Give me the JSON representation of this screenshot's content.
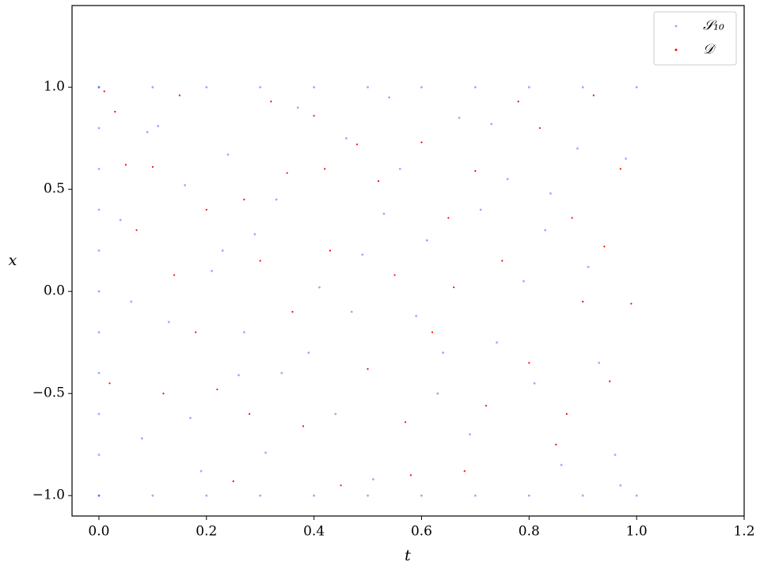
{
  "chart_data": {
    "type": "scatter",
    "xlabel": "t",
    "ylabel": "x",
    "xlim": [
      -0.05,
      1.2
    ],
    "ylim": [
      -1.1,
      1.4
    ],
    "xticks": [
      {
        "value": 0,
        "label": "0.0"
      },
      0.2,
      0.4,
      0.6,
      0.8,
      {
        "value": 1,
        "label": "1.0"
      },
      1.2
    ],
    "yticks": [
      {
        "value": -1,
        "label": "−1.0"
      },
      {
        "value": -0.5,
        "label": "−0.5"
      },
      {
        "value": 0,
        "label": "0.0"
      },
      0.5,
      {
        "value": 1,
        "label": "1.0"
      }
    ],
    "legend": "upper right",
    "series": [
      {
        "name": "𝒮₁₀",
        "color": "#0000ff",
        "x": [
          0,
          0.1,
          0.2,
          0.3,
          0.4,
          0.5,
          0.6,
          0.7,
          0.8,
          0.9,
          1,
          0,
          0.1,
          0.2,
          0.3,
          0.4,
          0.5,
          0.6,
          0.7,
          0.8,
          0.9,
          1,
          0,
          0,
          0,
          0,
          0,
          0,
          0,
          0,
          0,
          0,
          0,
          0.04,
          0.08,
          0.11,
          0.13,
          0.16,
          0.19,
          0.21,
          0.24,
          0.26,
          0.29,
          0.31,
          0.33,
          0.37,
          0.39,
          0.41,
          0.44,
          0.46,
          0.49,
          0.51,
          0.53,
          0.56,
          0.59,
          0.61,
          0.63,
          0.67,
          0.69,
          0.71,
          0.74,
          0.76,
          0.79,
          0.81,
          0.83,
          0.86,
          0.89,
          0.91,
          0.93,
          0.96,
          0.98,
          0.06,
          0.17,
          0.23,
          0.34,
          0.47,
          0.54,
          0.64,
          0.73,
          0.84,
          0.97,
          0.09,
          0.27
        ],
        "values": [
          1,
          1,
          1,
          1,
          1,
          1,
          1,
          1,
          1,
          1,
          1,
          -1,
          -1,
          -1,
          -1,
          -1,
          -1,
          -1,
          -1,
          -1,
          -1,
          -1,
          -1,
          -0.8,
          -0.6,
          -0.4,
          -0.2,
          0,
          0.2,
          0.4,
          0.6,
          0.8,
          1,
          0.35,
          -0.72,
          0.81,
          -0.15,
          0.52,
          -0.88,
          0.1,
          0.67,
          -0.41,
          0.28,
          -0.79,
          0.45,
          0.9,
          -0.3,
          0.02,
          -0.6,
          0.75,
          0.18,
          -0.92,
          0.38,
          0.6,
          -0.12,
          0.25,
          -0.5,
          0.85,
          -0.7,
          0.4,
          -0.25,
          0.55,
          0.05,
          -0.45,
          0.3,
          -0.85,
          0.7,
          0.12,
          -0.35,
          -0.8,
          0.65,
          -0.05,
          -0.62,
          0.2,
          -0.4,
          -0.1,
          0.95,
          -0.3,
          0.82,
          0.48,
          -0.95,
          0.78,
          -0.2
        ]
      },
      {
        "name": "𝒟",
        "color": "#ff0000",
        "x": [
          0.01,
          0.03,
          0.05,
          0.07,
          0.1,
          0.12,
          0.15,
          0.18,
          0.2,
          0.22,
          0.25,
          0.27,
          0.3,
          0.32,
          0.35,
          0.36,
          0.38,
          0.4,
          0.43,
          0.45,
          0.48,
          0.5,
          0.52,
          0.55,
          0.57,
          0.6,
          0.62,
          0.65,
          0.68,
          0.7,
          0.72,
          0.75,
          0.78,
          0.8,
          0.82,
          0.85,
          0.88,
          0.9,
          0.92,
          0.95,
          0.97,
          0.99,
          0.02,
          0.14,
          0.28,
          0.42,
          0.58,
          0.66,
          0.87,
          0.94
        ],
        "values": [
          0.98,
          0.88,
          0.62,
          0.3,
          0.61,
          -0.5,
          0.96,
          -0.2,
          0.4,
          -0.48,
          -0.93,
          0.45,
          0.15,
          0.93,
          0.58,
          -0.1,
          -0.66,
          0.86,
          0.2,
          -0.95,
          0.72,
          -0.38,
          0.54,
          0.08,
          -0.64,
          0.73,
          -0.2,
          0.36,
          -0.88,
          0.59,
          -0.56,
          0.15,
          0.93,
          -0.35,
          0.8,
          -0.75,
          0.36,
          -0.05,
          0.96,
          -0.44,
          0.6,
          -0.06,
          -0.45,
          0.08,
          -0.6,
          0.6,
          -0.9,
          0.02,
          -0.6,
          0.22
        ]
      }
    ]
  }
}
